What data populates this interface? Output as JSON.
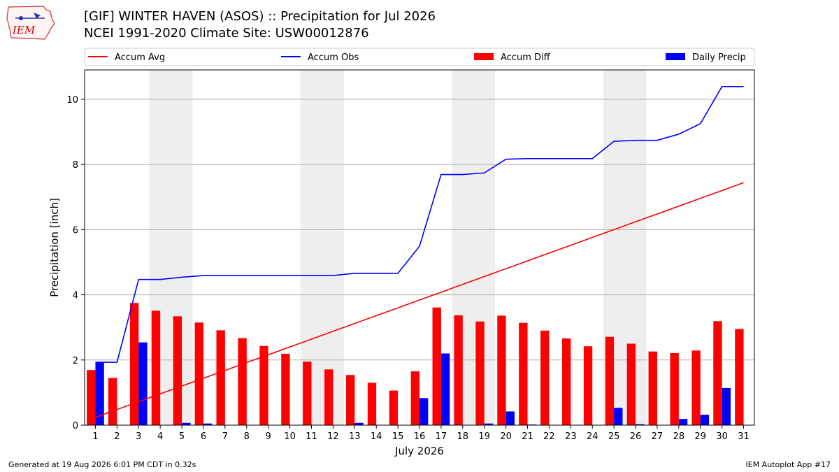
{
  "header": {
    "title_line1": "[GIF] WINTER HAVEN (ASOS) :: Precipitation for Jul 2026",
    "title_line2": "NCEI 1991-2020 Climate Site: USW00012876"
  },
  "logo": {
    "text": "IEM",
    "color": "#cc0000"
  },
  "footer": {
    "generated": "Generated at 19 Aug 2026 6:01 PM CDT in 0.32s",
    "app": "IEM Autoplot App #17"
  },
  "chart_data": {
    "type": "bar",
    "xlabel": "July 2026",
    "ylabel": "Precipitation [inch]",
    "ylim": [
      0,
      10.9
    ],
    "yticks": [
      0,
      2,
      4,
      6,
      8,
      10
    ],
    "grid": true,
    "legend_placement": "top",
    "weekend_shading": [
      [
        4,
        5
      ],
      [
        11,
        12
      ],
      [
        18,
        19
      ],
      [
        25,
        26
      ]
    ],
    "x": [
      1,
      2,
      3,
      4,
      5,
      6,
      7,
      8,
      9,
      10,
      11,
      12,
      13,
      14,
      15,
      16,
      17,
      18,
      19,
      20,
      21,
      22,
      23,
      24,
      25,
      26,
      27,
      28,
      29,
      30,
      31
    ],
    "series": [
      {
        "name": "Accum Avg",
        "kind": "line",
        "color": "#ff0000",
        "values": [
          0.24,
          0.48,
          0.72,
          0.96,
          1.2,
          1.44,
          1.68,
          1.92,
          2.16,
          2.4,
          2.64,
          2.88,
          3.12,
          3.36,
          3.6,
          3.84,
          4.08,
          4.32,
          4.56,
          4.8,
          5.04,
          5.28,
          5.52,
          5.76,
          6.0,
          6.24,
          6.48,
          6.72,
          6.96,
          7.2,
          7.44
        ]
      },
      {
        "name": "Accum Obs",
        "kind": "line",
        "color": "#0000ff",
        "values": [
          1.93,
          1.93,
          4.47,
          4.47,
          4.54,
          4.59,
          4.59,
          4.59,
          4.59,
          4.59,
          4.59,
          4.59,
          4.66,
          4.66,
          4.66,
          5.49,
          7.69,
          7.69,
          7.74,
          8.16,
          8.18,
          8.18,
          8.18,
          8.18,
          8.71,
          8.74,
          8.74,
          8.93,
          9.25,
          10.39,
          10.39
        ]
      },
      {
        "name": "Accum Diff",
        "kind": "bar",
        "color": "#ff0000",
        "values": [
          1.69,
          1.45,
          3.75,
          3.51,
          3.34,
          3.15,
          2.91,
          2.67,
          2.43,
          2.19,
          1.95,
          1.71,
          1.54,
          1.3,
          1.06,
          1.65,
          3.61,
          3.37,
          3.18,
          3.36,
          3.14,
          2.9,
          2.66,
          2.42,
          2.71,
          2.5,
          2.26,
          2.21,
          2.29,
          3.19,
          2.95
        ]
      },
      {
        "name": "Daily Precip",
        "kind": "bar",
        "color": "#0000ff",
        "values": [
          1.93,
          0,
          2.54,
          0.01,
          0.07,
          0.05,
          0,
          0,
          0,
          0.01,
          0,
          0.01,
          0.07,
          0.01,
          0,
          0.83,
          2.2,
          0,
          0.05,
          0.42,
          0.02,
          0,
          0,
          0,
          0.53,
          0.03,
          0.01,
          0.19,
          0.32,
          1.14,
          0.01
        ]
      }
    ]
  }
}
